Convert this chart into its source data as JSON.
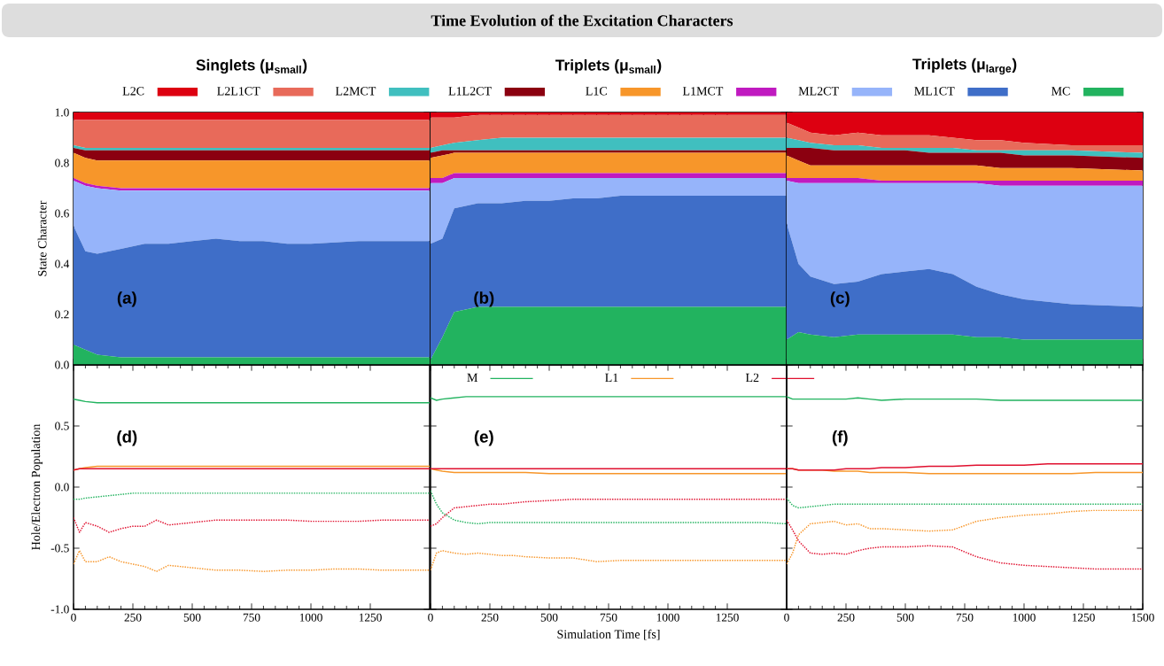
{
  "chart_data": [
    {
      "type": "area",
      "stacked": true,
      "subtitle": "Singlets (μ$_{small}$)",
      "ylabel": "State Character",
      "annotations": [
        "(a)"
      ],
      "legend": "top",
      "tick_labels": "y",
      "xlim": [
        0,
        1500
      ],
      "ylim": [
        0,
        1
      ],
      "xticks": [
        0,
        250,
        500,
        750,
        1000,
        1250
      ],
      "yticks": [
        {
          "value": 0,
          "label": "0.0"
        },
        {
          "value": 0.2,
          "label": "0.2"
        },
        {
          "value": 0.4,
          "label": "0.4"
        },
        {
          "value": 0.6,
          "label": "0.6"
        },
        {
          "value": 0.8,
          "label": "0.8"
        },
        {
          "value": 1,
          "label": "1.0"
        }
      ],
      "x": [
        0,
        50,
        100,
        200,
        300,
        400,
        500,
        600,
        700,
        800,
        900,
        1000,
        1200,
        1500
      ],
      "series": [
        {
          "name": "MC",
          "color": "#22b35f",
          "values": [
            0.08,
            0.06,
            0.04,
            0.03,
            0.03,
            0.03,
            0.03,
            0.03,
            0.03,
            0.03,
            0.03,
            0.03,
            0.03,
            0.03
          ]
        },
        {
          "name": "ML1CT",
          "color": "#3f6ec8",
          "values": [
            0.47,
            0.39,
            0.4,
            0.43,
            0.45,
            0.45,
            0.46,
            0.47,
            0.46,
            0.46,
            0.45,
            0.45,
            0.46,
            0.46
          ]
        },
        {
          "name": "ML2CT",
          "color": "#96b4fa",
          "values": [
            0.18,
            0.26,
            0.26,
            0.23,
            0.21,
            0.21,
            0.2,
            0.19,
            0.2,
            0.2,
            0.21,
            0.21,
            0.2,
            0.2
          ]
        },
        {
          "name": "L1MCT",
          "color": "#c01ac0",
          "values": [
            0.01,
            0.01,
            0.01,
            0.01,
            0.01,
            0.01,
            0.01,
            0.01,
            0.01,
            0.01,
            0.01,
            0.01,
            0.01,
            0.01
          ]
        },
        {
          "name": "L1C",
          "color": "#f7962a",
          "values": [
            0.1,
            0.1,
            0.1,
            0.11,
            0.11,
            0.11,
            0.11,
            0.11,
            0.11,
            0.11,
            0.11,
            0.11,
            0.11,
            0.11
          ]
        },
        {
          "name": "L1L2CT",
          "color": "#8b0010",
          "values": [
            0.02,
            0.03,
            0.04,
            0.04,
            0.04,
            0.04,
            0.04,
            0.04,
            0.04,
            0.04,
            0.04,
            0.04,
            0.04,
            0.04
          ]
        },
        {
          "name": "L2MCT",
          "color": "#40bfbf",
          "values": [
            0.01,
            0.01,
            0.01,
            0.01,
            0.01,
            0.01,
            0.01,
            0.01,
            0.01,
            0.01,
            0.01,
            0.01,
            0.01,
            0.01
          ]
        },
        {
          "name": "L2L1CT",
          "color": "#e86a5a",
          "values": [
            0.1,
            0.11,
            0.11,
            0.11,
            0.11,
            0.11,
            0.11,
            0.11,
            0.11,
            0.11,
            0.11,
            0.11,
            0.11,
            0.11
          ]
        },
        {
          "name": "L2C",
          "color": "#dd0011",
          "values": [
            0.03,
            0.03,
            0.03,
            0.03,
            0.03,
            0.03,
            0.03,
            0.03,
            0.03,
            0.03,
            0.03,
            0.03,
            0.03,
            0.03
          ]
        }
      ]
    },
    {
      "type": "area",
      "stacked": true,
      "title": "Time Evolution of the Excitation Characters",
      "subtitle": "Triplets (μ$_{small}$)",
      "annotations": [
        "(b)"
      ],
      "tick_labels": false,
      "xlim": [
        0,
        1500
      ],
      "ylim": [
        0,
        1
      ],
      "xticks": [
        0,
        250,
        500,
        750,
        1000,
        1250
      ],
      "yticks": [
        {
          "value": 0,
          "label": null
        },
        {
          "value": 0.2,
          "label": null
        },
        {
          "value": 0.4,
          "label": null
        },
        {
          "value": 0.6,
          "label": null
        },
        {
          "value": 0.8,
          "label": null
        },
        {
          "value": 1,
          "label": null
        }
      ],
      "x": [
        0,
        50,
        100,
        200,
        300,
        400,
        500,
        600,
        700,
        800,
        900,
        1000,
        1200,
        1500
      ],
      "series": [
        {
          "color": "#22b35f",
          "values": [
            0.02,
            0.11,
            0.21,
            0.23,
            0.23,
            0.23,
            0.23,
            0.23,
            0.23,
            0.23,
            0.23,
            0.23,
            0.23,
            0.23
          ]
        },
        {
          "color": "#3f6ec8",
          "values": [
            0.46,
            0.39,
            0.41,
            0.41,
            0.41,
            0.42,
            0.42,
            0.43,
            0.43,
            0.44,
            0.44,
            0.44,
            0.44,
            0.44
          ]
        },
        {
          "color": "#96b4fa",
          "values": [
            0.24,
            0.22,
            0.12,
            0.1,
            0.1,
            0.09,
            0.09,
            0.08,
            0.08,
            0.07,
            0.07,
            0.07,
            0.07,
            0.07
          ]
        },
        {
          "color": "#c01ac0",
          "values": [
            0.02,
            0.02,
            0.02,
            0.02,
            0.02,
            0.02,
            0.02,
            0.02,
            0.02,
            0.02,
            0.02,
            0.02,
            0.02,
            0.02
          ]
        },
        {
          "color": "#f7962a",
          "values": [
            0.08,
            0.09,
            0.08,
            0.08,
            0.08,
            0.08,
            0.08,
            0.08,
            0.08,
            0.08,
            0.08,
            0.08,
            0.08,
            0.08
          ]
        },
        {
          "color": "#8b0010",
          "values": [
            0.02,
            0.02,
            0.01,
            0.01,
            0.01,
            0.01,
            0.01,
            0.01,
            0.01,
            0.01,
            0.01,
            0.01,
            0.01,
            0.01
          ]
        },
        {
          "color": "#40bfbf",
          "values": [
            0.02,
            0.02,
            0.03,
            0.04,
            0.05,
            0.05,
            0.05,
            0.05,
            0.05,
            0.05,
            0.05,
            0.05,
            0.05,
            0.05
          ]
        },
        {
          "color": "#e86a5a",
          "values": [
            0.12,
            0.11,
            0.1,
            0.1,
            0.09,
            0.09,
            0.09,
            0.09,
            0.09,
            0.09,
            0.09,
            0.09,
            0.09,
            0.09
          ]
        },
        {
          "color": "#dd0011",
          "values": [
            0.02,
            0.02,
            0.02,
            0.01,
            0.01,
            0.01,
            0.01,
            0.01,
            0.01,
            0.01,
            0.01,
            0.01,
            0.01,
            0.01
          ]
        }
      ]
    },
    {
      "type": "area",
      "stacked": true,
      "subtitle": "Triplets (μ$_{large}$)",
      "annotations": [
        "(c)"
      ],
      "tick_labels": false,
      "xlim": [
        0,
        1500
      ],
      "ylim": [
        0,
        1
      ],
      "xticks": [
        0,
        250,
        500,
        750,
        1000,
        1250,
        1500
      ],
      "yticks": [
        {
          "value": 0,
          "label": null
        },
        {
          "value": 0.2,
          "label": null
        },
        {
          "value": 0.4,
          "label": null
        },
        {
          "value": 0.6,
          "label": null
        },
        {
          "value": 0.8,
          "label": null
        },
        {
          "value": 1,
          "label": null
        }
      ],
      "x": [
        0,
        50,
        100,
        200,
        300,
        400,
        500,
        600,
        700,
        800,
        900,
        1000,
        1200,
        1500
      ],
      "series": [
        {
          "color": "#22b35f",
          "values": [
            0.1,
            0.13,
            0.12,
            0.11,
            0.12,
            0.12,
            0.12,
            0.12,
            0.12,
            0.11,
            0.11,
            0.1,
            0.1,
            0.1
          ]
        },
        {
          "color": "#3f6ec8",
          "values": [
            0.46,
            0.27,
            0.23,
            0.21,
            0.21,
            0.24,
            0.25,
            0.26,
            0.24,
            0.2,
            0.17,
            0.16,
            0.14,
            0.13
          ]
        },
        {
          "color": "#96b4fa",
          "values": [
            0.17,
            0.32,
            0.37,
            0.4,
            0.39,
            0.36,
            0.35,
            0.34,
            0.36,
            0.41,
            0.43,
            0.45,
            0.47,
            0.48
          ]
        },
        {
          "color": "#c01ac0",
          "values": [
            0.01,
            0.02,
            0.02,
            0.02,
            0.02,
            0.01,
            0.01,
            0.01,
            0.01,
            0.01,
            0.02,
            0.02,
            0.02,
            0.02
          ]
        },
        {
          "color": "#f7962a",
          "values": [
            0.09,
            0.07,
            0.05,
            0.05,
            0.05,
            0.06,
            0.06,
            0.06,
            0.06,
            0.06,
            0.05,
            0.05,
            0.05,
            0.04
          ]
        },
        {
          "color": "#8b0010",
          "values": [
            0.03,
            0.05,
            0.07,
            0.06,
            0.06,
            0.06,
            0.06,
            0.05,
            0.05,
            0.05,
            0.06,
            0.05,
            0.05,
            0.05
          ]
        },
        {
          "color": "#40bfbf",
          "values": [
            0.04,
            0.03,
            0.02,
            0.02,
            0.02,
            0.01,
            0.01,
            0.02,
            0.02,
            0.01,
            0.01,
            0.02,
            0.02,
            0.02
          ]
        },
        {
          "color": "#e86a5a",
          "values": [
            0.06,
            0.05,
            0.04,
            0.04,
            0.05,
            0.05,
            0.05,
            0.05,
            0.04,
            0.04,
            0.04,
            0.03,
            0.02,
            0.03
          ]
        },
        {
          "color": "#dd0011",
          "values": [
            0.04,
            0.06,
            0.08,
            0.09,
            0.08,
            0.09,
            0.09,
            0.09,
            0.1,
            0.11,
            0.11,
            0.12,
            0.13,
            0.13
          ]
        }
      ]
    },
    {
      "type": "line",
      "ylabel": "Hole/Electron Population",
      "annotations": [
        "(d)"
      ],
      "xlim": [
        0,
        1500
      ],
      "ylim": [
        -1,
        1
      ],
      "xticks": [
        0,
        250,
        500,
        750,
        1000,
        1250
      ],
      "yticks": [
        {
          "value": -1,
          "label": "-1.0"
        },
        {
          "value": -0.5,
          "label": "-0.5"
        },
        {
          "value": 0,
          "label": "0.0"
        },
        {
          "value": 0.5,
          "label": "0.5"
        }
      ],
      "x": [
        0,
        25,
        50,
        100,
        150,
        200,
        250,
        300,
        350,
        400,
        500,
        600,
        700,
        800,
        900,
        1000,
        1100,
        1200,
        1300,
        1400,
        1500
      ],
      "series": [
        {
          "color": "#22b35f",
          "line_style": "solid",
          "values": [
            0.72,
            0.71,
            0.7,
            0.69,
            0.69,
            0.69,
            0.69,
            0.69,
            0.69,
            0.69,
            0.69,
            0.69,
            0.69,
            0.69,
            0.69,
            0.69,
            0.69,
            0.69,
            0.69,
            0.69,
            0.69
          ]
        },
        {
          "color": "#f7962a",
          "line_style": "solid",
          "values": [
            0.14,
            0.15,
            0.16,
            0.17,
            0.17,
            0.17,
            0.17,
            0.17,
            0.17,
            0.17,
            0.17,
            0.17,
            0.17,
            0.17,
            0.17,
            0.17,
            0.17,
            0.17,
            0.17,
            0.17,
            0.17
          ]
        },
        {
          "color": "#e0102f",
          "line_style": "solid",
          "values": [
            0.14,
            0.15,
            0.15,
            0.15,
            0.15,
            0.15,
            0.15,
            0.15,
            0.15,
            0.15,
            0.15,
            0.15,
            0.15,
            0.15,
            0.15,
            0.15,
            0.15,
            0.15,
            0.15,
            0.15,
            0.15
          ]
        },
        {
          "color": "#22b35f",
          "line_style": "dotted",
          "values": [
            -0.1,
            -0.1,
            -0.09,
            -0.08,
            -0.07,
            -0.06,
            -0.05,
            -0.05,
            -0.05,
            -0.05,
            -0.05,
            -0.05,
            -0.05,
            -0.05,
            -0.05,
            -0.05,
            -0.05,
            -0.05,
            -0.05,
            -0.05,
            -0.05
          ]
        },
        {
          "color": "#f7962a",
          "line_style": "dotted",
          "values": [
            -0.63,
            -0.52,
            -0.61,
            -0.61,
            -0.57,
            -0.61,
            -0.63,
            -0.65,
            -0.69,
            -0.64,
            -0.66,
            -0.68,
            -0.68,
            -0.69,
            -0.68,
            -0.68,
            -0.67,
            -0.67,
            -0.68,
            -0.68,
            -0.68
          ]
        },
        {
          "color": "#e0102f",
          "line_style": "dotted",
          "values": [
            -0.25,
            -0.37,
            -0.29,
            -0.32,
            -0.37,
            -0.34,
            -0.32,
            -0.32,
            -0.27,
            -0.31,
            -0.29,
            -0.27,
            -0.27,
            -0.27,
            -0.27,
            -0.28,
            -0.28,
            -0.28,
            -0.27,
            -0.27,
            -0.27
          ]
        }
      ]
    },
    {
      "type": "line",
      "xlabel": "Simulation Time [fs]",
      "annotations": [
        "(e)"
      ],
      "legend": "top",
      "tick_labels": "x",
      "xlim": [
        0,
        1500
      ],
      "ylim": [
        -1,
        1
      ],
      "xticks": [
        0,
        250,
        500,
        750,
        1000,
        1250
      ],
      "yticks": [
        {
          "value": -1,
          "label": null
        },
        {
          "value": -0.5,
          "label": null
        },
        {
          "value": 0,
          "label": null
        },
        {
          "value": 0.5,
          "label": null
        }
      ],
      "x": [
        0,
        25,
        50,
        100,
        150,
        200,
        250,
        300,
        350,
        400,
        500,
        600,
        700,
        800,
        900,
        1000,
        1100,
        1200,
        1300,
        1400,
        1500
      ],
      "series": [
        {
          "name": "M",
          "color": "#22b35f",
          "line_style": "solid",
          "values": [
            0.73,
            0.71,
            0.72,
            0.73,
            0.74,
            0.74,
            0.74,
            0.74,
            0.74,
            0.74,
            0.74,
            0.74,
            0.74,
            0.74,
            0.74,
            0.74,
            0.74,
            0.74,
            0.74,
            0.74,
            0.74
          ]
        },
        {
          "name": "L1",
          "color": "#f7962a",
          "line_style": "solid",
          "values": [
            0.15,
            0.14,
            0.13,
            0.12,
            0.12,
            0.12,
            0.12,
            0.12,
            0.12,
            0.12,
            0.11,
            0.11,
            0.11,
            0.11,
            0.11,
            0.11,
            0.11,
            0.11,
            0.11,
            0.11,
            0.11
          ]
        },
        {
          "name": "L2",
          "color": "#e0102f",
          "line_style": "solid",
          "values": [
            0.15,
            0.15,
            0.15,
            0.15,
            0.15,
            0.15,
            0.15,
            0.15,
            0.15,
            0.15,
            0.15,
            0.15,
            0.15,
            0.15,
            0.15,
            0.15,
            0.15,
            0.15,
            0.15,
            0.15,
            0.15
          ]
        },
        {
          "color": "#22b35f",
          "line_style": "dotted",
          "values": [
            -0.03,
            -0.14,
            -0.21,
            -0.27,
            -0.29,
            -0.3,
            -0.29,
            -0.29,
            -0.29,
            -0.29,
            -0.29,
            -0.29,
            -0.29,
            -0.29,
            -0.29,
            -0.29,
            -0.29,
            -0.29,
            -0.29,
            -0.29,
            -0.3
          ]
        },
        {
          "color": "#f7962a",
          "line_style": "dotted",
          "values": [
            -0.68,
            -0.54,
            -0.52,
            -0.54,
            -0.55,
            -0.54,
            -0.55,
            -0.56,
            -0.56,
            -0.57,
            -0.58,
            -0.58,
            -0.61,
            -0.6,
            -0.6,
            -0.6,
            -0.6,
            -0.6,
            -0.6,
            -0.6,
            -0.6
          ]
        },
        {
          "color": "#e0102f",
          "line_style": "dotted",
          "values": [
            -0.32,
            -0.3,
            -0.25,
            -0.17,
            -0.16,
            -0.15,
            -0.14,
            -0.14,
            -0.13,
            -0.12,
            -0.11,
            -0.1,
            -0.1,
            -0.1,
            -0.1,
            -0.1,
            -0.1,
            -0.1,
            -0.1,
            -0.1,
            -0.1
          ]
        }
      ]
    },
    {
      "type": "line",
      "annotations": [
        "(f)"
      ],
      "tick_labels": "x",
      "xlim": [
        0,
        1500
      ],
      "ylim": [
        -1,
        1
      ],
      "xticks": [
        0,
        250,
        500,
        750,
        1000,
        1250,
        1500
      ],
      "yticks": [
        {
          "value": -1,
          "label": null
        },
        {
          "value": -0.5,
          "label": null
        },
        {
          "value": 0,
          "label": null
        },
        {
          "value": 0.5,
          "label": null
        }
      ],
      "x": [
        0,
        25,
        50,
        100,
        150,
        200,
        250,
        300,
        350,
        400,
        500,
        600,
        700,
        800,
        900,
        1000,
        1100,
        1200,
        1300,
        1400,
        1500
      ],
      "series": [
        {
          "color": "#22b35f",
          "line_style": "solid",
          "values": [
            0.74,
            0.72,
            0.72,
            0.72,
            0.72,
            0.72,
            0.72,
            0.73,
            0.72,
            0.71,
            0.72,
            0.72,
            0.72,
            0.72,
            0.71,
            0.71,
            0.71,
            0.71,
            0.71,
            0.71,
            0.71
          ]
        },
        {
          "color": "#f7962a",
          "line_style": "solid",
          "values": [
            0.15,
            0.15,
            0.14,
            0.14,
            0.14,
            0.13,
            0.13,
            0.13,
            0.12,
            0.12,
            0.12,
            0.11,
            0.11,
            0.11,
            0.11,
            0.11,
            0.11,
            0.11,
            0.12,
            0.12,
            0.12
          ]
        },
        {
          "color": "#e0102f",
          "line_style": "solid",
          "values": [
            0.15,
            0.15,
            0.14,
            0.14,
            0.14,
            0.14,
            0.15,
            0.15,
            0.15,
            0.16,
            0.16,
            0.17,
            0.17,
            0.18,
            0.18,
            0.18,
            0.19,
            0.19,
            0.19,
            0.19,
            0.19
          ]
        },
        {
          "color": "#22b35f",
          "line_style": "dotted",
          "values": [
            -0.09,
            -0.15,
            -0.17,
            -0.16,
            -0.15,
            -0.14,
            -0.14,
            -0.14,
            -0.14,
            -0.14,
            -0.14,
            -0.14,
            -0.14,
            -0.14,
            -0.14,
            -0.14,
            -0.14,
            -0.14,
            -0.14,
            -0.14,
            -0.14
          ]
        },
        {
          "color": "#f7962a",
          "line_style": "dotted",
          "values": [
            -0.63,
            -0.54,
            -0.39,
            -0.3,
            -0.29,
            -0.28,
            -0.31,
            -0.3,
            -0.34,
            -0.34,
            -0.35,
            -0.36,
            -0.35,
            -0.28,
            -0.25,
            -0.23,
            -0.22,
            -0.2,
            -0.19,
            -0.19,
            -0.19
          ]
        },
        {
          "color": "#e0102f",
          "line_style": "dotted",
          "values": [
            -0.27,
            -0.35,
            -0.44,
            -0.54,
            -0.55,
            -0.54,
            -0.55,
            -0.52,
            -0.5,
            -0.49,
            -0.49,
            -0.48,
            -0.49,
            -0.57,
            -0.62,
            -0.64,
            -0.65,
            -0.66,
            -0.67,
            -0.67,
            -0.67
          ]
        }
      ]
    }
  ]
}
